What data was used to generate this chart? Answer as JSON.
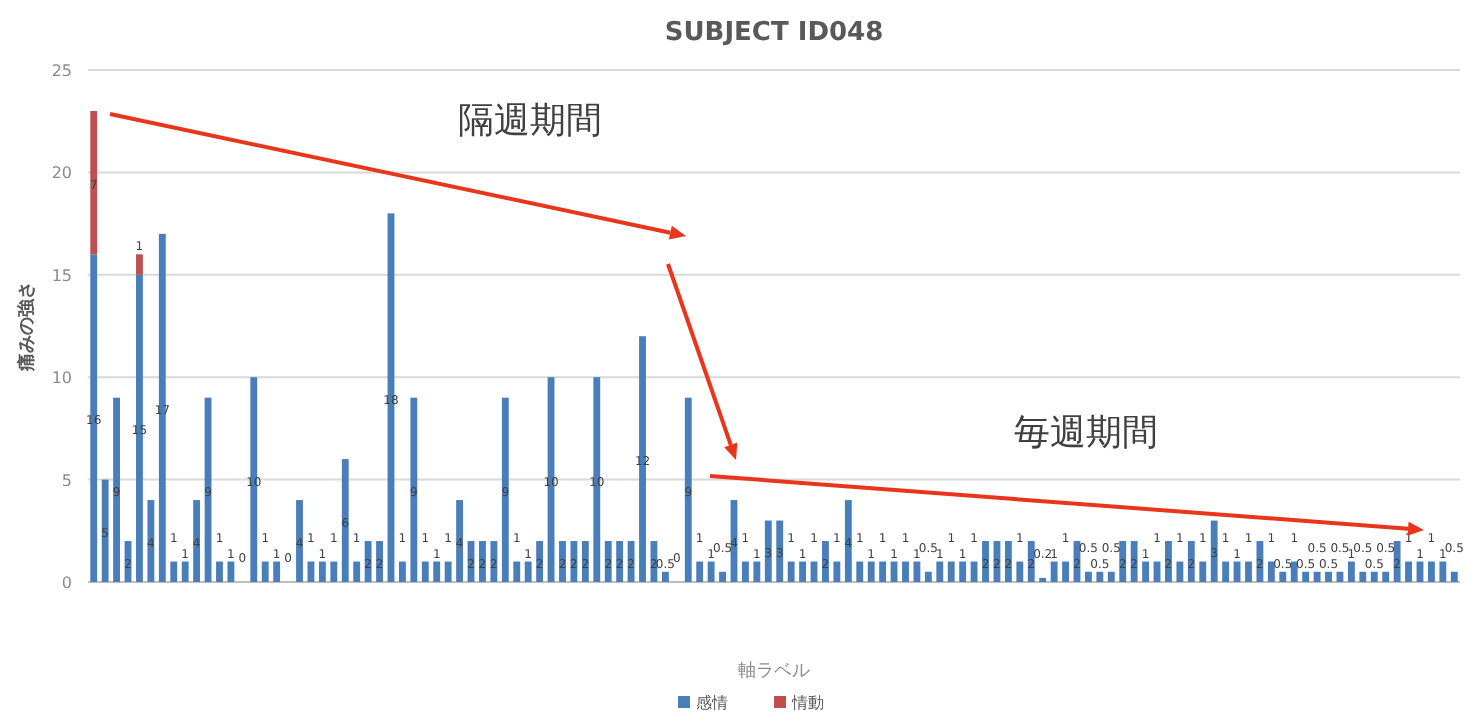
{
  "chart_data": {
    "type": "bar",
    "title": "SUBJECT ID048",
    "xlabel": "軸ラベル",
    "ylabel": "痛みの強さ",
    "annotations": [
      "隔週期間",
      "毎週期間"
    ],
    "categories": [
      null,
      null,
      null,
      null,
      null,
      null,
      null,
      null,
      null,
      null,
      null,
      null,
      null,
      null,
      null,
      null,
      null,
      null,
      null,
      null,
      null,
      null,
      null,
      null,
      null,
      null,
      null,
      null,
      null,
      null,
      null,
      null,
      null,
      null,
      null,
      null,
      null,
      null,
      null,
      null,
      null,
      null,
      null,
      null,
      null,
      null,
      null,
      null,
      null,
      null,
      null,
      null,
      null,
      null,
      null,
      null,
      null,
      null,
      null,
      null,
      null,
      null,
      null,
      null,
      null,
      null,
      null,
      null,
      null,
      null,
      null,
      null,
      null,
      null,
      null,
      null,
      null,
      null,
      null,
      null,
      null,
      null,
      null,
      null,
      null,
      null,
      null,
      null,
      null,
      null,
      null,
      null,
      null,
      null,
      null,
      null,
      null,
      null,
      null,
      null,
      null,
      null,
      null,
      null,
      null,
      null,
      null,
      null,
      null,
      null,
      null,
      null,
      null,
      null,
      null,
      null,
      null,
      null,
      null,
      null
    ],
    "stacked": true,
    "ylim": [
      0,
      25
    ],
    "yticks": [
      0,
      5,
      10,
      15,
      20,
      25
    ],
    "grid": "y",
    "legend": "bottom",
    "data_labels": true,
    "series": [
      {
        "name": "感情",
        "color": "#4a7ebb",
        "values": [
          16,
          5,
          9,
          2,
          15,
          4,
          17,
          1,
          1,
          4,
          9,
          1,
          1,
          0,
          10,
          1,
          1,
          0,
          4,
          1,
          1,
          1,
          6,
          1,
          2,
          2,
          18,
          1,
          9,
          1,
          1,
          1,
          4,
          2,
          2,
          2,
          9,
          1,
          1,
          2,
          10,
          2,
          2,
          2,
          10,
          2,
          2,
          2,
          12,
          2,
          0.5,
          0,
          9,
          1,
          1,
          0.5,
          4,
          1,
          1,
          3,
          3,
          1,
          1,
          1,
          2,
          1,
          4,
          1,
          1,
          1,
          1,
          1,
          1,
          0.5,
          1,
          1,
          1,
          1,
          2,
          2,
          2,
          1,
          2,
          0.2,
          1,
          1,
          2,
          0.5,
          0.5,
          0.5,
          2,
          2,
          1,
          1,
          2,
          1,
          2,
          1,
          3,
          1,
          1,
          1,
          2,
          1,
          0.5,
          1,
          0.5,
          0.5,
          0.5,
          0.5,
          1,
          0.5,
          0.5,
          0.5,
          2,
          1,
          1,
          1,
          1,
          0.5
        ]
      },
      {
        "name": "情動",
        "color": "#c0504d",
        "values": [
          7,
          null,
          null,
          null,
          1,
          null,
          null,
          null,
          null,
          null,
          null,
          null,
          null,
          null,
          null,
          null,
          null,
          null,
          null,
          null,
          null,
          null,
          null,
          null,
          null,
          null,
          null,
          null,
          null,
          null,
          null,
          null,
          null,
          null,
          null,
          null,
          null,
          null,
          null,
          null,
          null,
          null,
          null,
          null,
          null,
          null,
          null,
          null,
          null,
          null,
          null,
          null,
          null,
          null,
          null,
          null,
          null,
          null,
          null,
          null,
          null,
          null,
          null,
          null,
          null,
          null,
          null,
          null,
          null,
          null,
          null,
          null,
          null,
          null,
          null,
          null,
          null,
          null,
          null,
          null,
          null,
          null,
          null,
          null,
          null,
          null,
          null,
          null,
          null,
          null,
          null,
          null,
          null,
          null,
          null,
          null,
          null,
          null,
          null,
          null,
          null,
          null,
          null,
          null,
          null,
          null,
          null,
          null,
          null,
          null,
          null,
          null,
          null,
          null,
          null,
          null,
          null,
          null,
          null,
          null
        ]
      }
    ]
  }
}
